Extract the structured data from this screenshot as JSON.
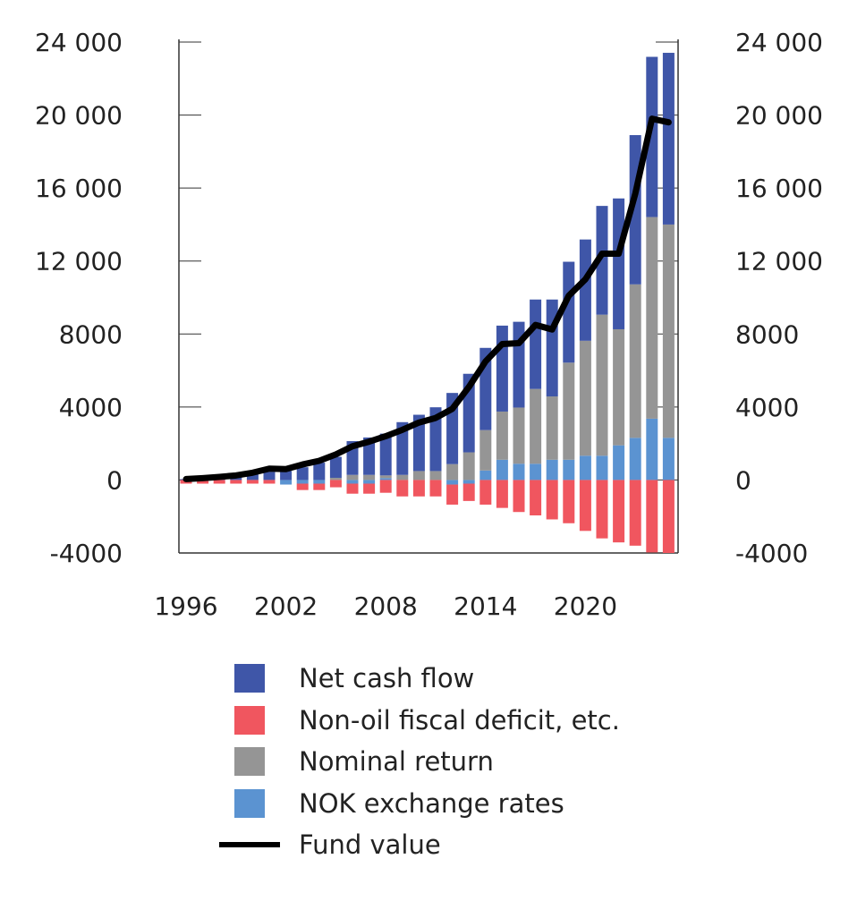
{
  "chart_data": {
    "type": "bar",
    "stacked": true,
    "title": "",
    "xlabel": "",
    "ylabel": "",
    "ylim": [
      -4000,
      24000
    ],
    "yticks": [
      24000,
      20000,
      16000,
      12000,
      8000,
      4000,
      0,
      -4000
    ],
    "ytick_labels": [
      "24 000",
      "20 000",
      "16 000",
      "12 000",
      "8000",
      "4000",
      "0",
      "-4000"
    ],
    "xtick_labels": [
      "1996",
      "2002",
      "2008",
      "2014",
      "2020"
    ],
    "axes": "left and right y axes with identical ticks",
    "grid": false,
    "legend_position": "bottom",
    "categories": [
      1996,
      1997,
      1998,
      1999,
      2000,
      2001,
      2002,
      2003,
      2004,
      2005,
      2006,
      2007,
      2008,
      2009,
      2010,
      2011,
      2012,
      2013,
      2014,
      2015,
      2016,
      2017,
      2018,
      2019,
      2020,
      2021,
      2022,
      2023,
      2024,
      2025
    ],
    "series": [
      {
        "name": "Net cash flow",
        "type": "bar",
        "color": "#3f56a8",
        "values": [
          50,
          100,
          150,
          250,
          400,
          450,
          500,
          700,
          950,
          1150,
          1850,
          2050,
          2290,
          2890,
          3085,
          3495,
          3900,
          4305,
          4505,
          4710,
          4700,
          4900,
          5310,
          5530,
          5550,
          5960,
          7170,
          8180,
          8780,
          9410
        ]
      },
      {
        "name": "Non-oil fiscal deficit, etc.",
        "type": "bar",
        "color": "#f0565f",
        "values": [
          -200,
          -200,
          -200,
          -200,
          -200,
          -200,
          0,
          -350,
          -350,
          -400,
          -550,
          -550,
          -700,
          -900,
          -900,
          -900,
          -1100,
          -950,
          -1350,
          -1530,
          -1755,
          -1940,
          -2160,
          -2370,
          -2790,
          -3200,
          -3420,
          -3600,
          -3970,
          -4000
        ]
      },
      {
        "name": "Nominal return",
        "type": "bar",
        "color": "#959595",
        "values": [
          0,
          0,
          0,
          0,
          0,
          0,
          0,
          0,
          0,
          120,
          280,
          280,
          150,
          280,
          490,
          490,
          870,
          1515,
          2215,
          2640,
          3080,
          4100,
          3470,
          5320,
          6300,
          7730,
          6360,
          8410,
          11050,
          11690
        ]
      },
      {
        "name": "NOK exchange rates",
        "type": "bar",
        "color": "#5b93d1",
        "values": [
          0,
          0,
          0,
          0,
          0,
          0,
          -250,
          -200,
          -200,
          0,
          -200,
          -200,
          100,
          0,
          0,
          0,
          -250,
          -200,
          520,
          1110,
          890,
          890,
          1110,
          1110,
          1330,
          1330,
          1900,
          2310,
          3360,
          2310
        ]
      },
      {
        "name": "Fund value",
        "type": "line",
        "color": "#000000",
        "values": [
          50,
          100,
          170,
          250,
          400,
          620,
          600,
          850,
          1050,
          1400,
          1850,
          2100,
          2400,
          2750,
          3150,
          3400,
          3900,
          5100,
          6500,
          7450,
          7500,
          8500,
          8250,
          10100,
          11000,
          12400,
          12400,
          15700,
          19800,
          19600
        ]
      }
    ]
  }
}
